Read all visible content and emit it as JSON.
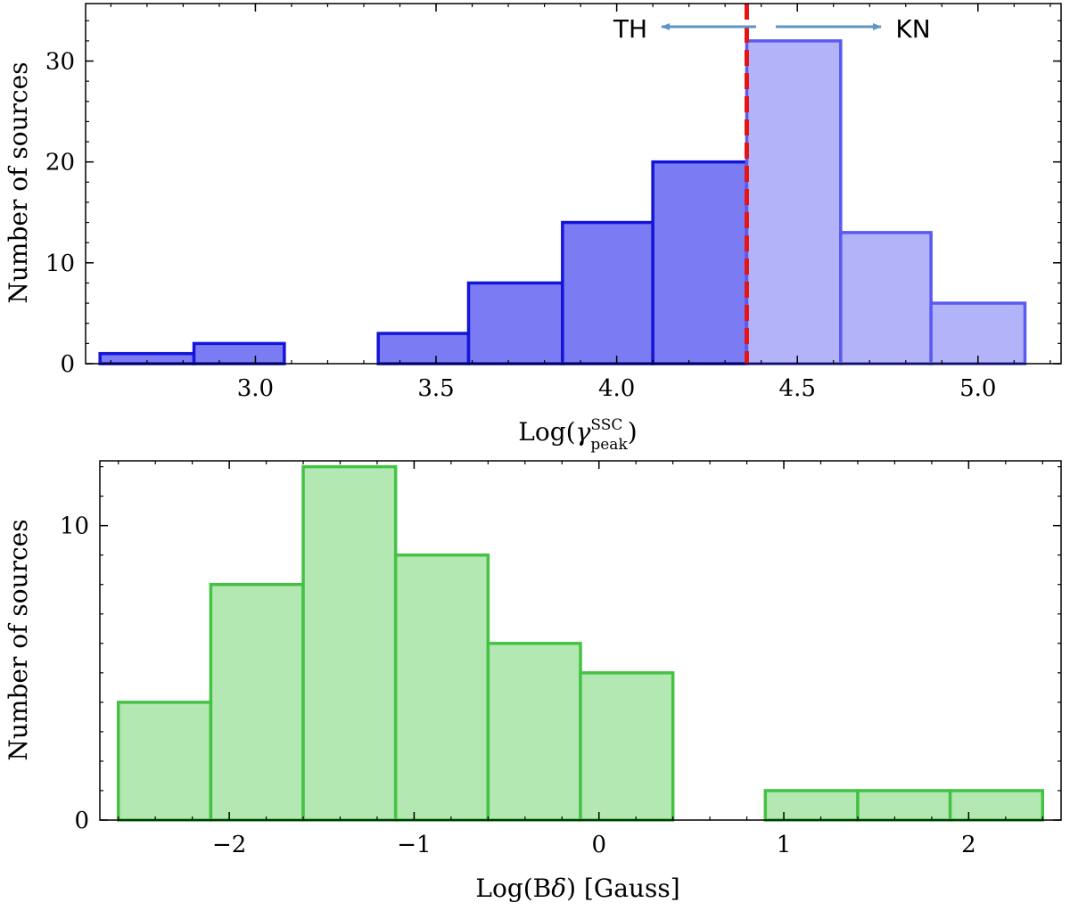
{
  "colors": {
    "top_bar_fill_th": "#7b7bf4",
    "top_bar_fill_kn": "#b3b3fa",
    "top_bar_edge_th": "#1515d8",
    "top_bar_edge_kn": "#5a5af0",
    "bottom_bar_fill": "#b3e8b3",
    "bottom_bar_edge": "#44c244",
    "threshold_line": "#e81414",
    "arrow": "#5f94c6"
  },
  "chart_data": [
    {
      "type": "bar",
      "subtype": "histogram",
      "xlabel": "Log(",
      "xlabel_symbol": "γ",
      "xlabel_sup": "SSC",
      "xlabel_sub": "peak",
      "xlabel_close": ")",
      "ylabel": "Number of sources",
      "xlim": [
        2.53,
        5.23
      ],
      "ylim": [
        0,
        35.7
      ],
      "xticks": [
        3.0,
        3.5,
        4.0,
        4.5,
        5.0
      ],
      "xtick_labels": [
        "3.0",
        "3.5",
        "4.0",
        "4.5",
        "5.0"
      ],
      "yticks": [
        0,
        10,
        20,
        30
      ],
      "ytick_labels": [
        "0",
        "10",
        "20",
        "30"
      ],
      "bins": [
        {
          "x0": 2.57,
          "x1": 2.83,
          "count": 1,
          "group": "TH"
        },
        {
          "x0": 2.83,
          "x1": 3.08,
          "count": 2,
          "group": "TH"
        },
        {
          "x0": 3.08,
          "x1": 3.34,
          "count": 0,
          "group": "TH"
        },
        {
          "x0": 3.34,
          "x1": 3.59,
          "count": 3,
          "group": "TH"
        },
        {
          "x0": 3.59,
          "x1": 3.85,
          "count": 8,
          "group": "TH"
        },
        {
          "x0": 3.85,
          "x1": 4.1,
          "count": 14,
          "group": "TH"
        },
        {
          "x0": 4.1,
          "x1": 4.36,
          "count": 20,
          "group": "TH"
        },
        {
          "x0": 4.36,
          "x1": 4.62,
          "count": 32,
          "group": "KN"
        },
        {
          "x0": 4.62,
          "x1": 4.87,
          "count": 13,
          "group": "KN"
        },
        {
          "x0": 4.87,
          "x1": 5.13,
          "count": 6,
          "group": "KN"
        }
      ],
      "threshold_x": 4.36,
      "annotations": [
        {
          "text": "TH",
          "direction": "left"
        },
        {
          "text": "KN",
          "direction": "right"
        }
      ]
    },
    {
      "type": "bar",
      "subtype": "histogram",
      "xlabel": "Log(B",
      "xlabel_symbol": "δ",
      "xlabel_close": ") [Gauss]",
      "ylabel": "Number of sources",
      "xlim": [
        -2.7,
        2.5
      ],
      "ylim": [
        0,
        12.2
      ],
      "xticks": [
        -2,
        -1,
        0,
        1,
        2
      ],
      "xtick_labels": [
        "−2",
        "−1",
        "0",
        "1",
        "2"
      ],
      "yticks": [
        0,
        10
      ],
      "ytick_labels": [
        "0",
        "10"
      ],
      "bins": [
        {
          "x0": -2.6,
          "x1": -2.1,
          "count": 4
        },
        {
          "x0": -2.1,
          "x1": -1.6,
          "count": 8
        },
        {
          "x0": -1.6,
          "x1": -1.1,
          "count": 12
        },
        {
          "x0": -1.1,
          "x1": -0.6,
          "count": 9
        },
        {
          "x0": -0.6,
          "x1": -0.1,
          "count": 6
        },
        {
          "x0": -0.1,
          "x1": 0.4,
          "count": 5
        },
        {
          "x0": 0.4,
          "x1": 0.9,
          "count": 0
        },
        {
          "x0": 0.9,
          "x1": 1.4,
          "count": 1
        },
        {
          "x0": 1.4,
          "x1": 1.9,
          "count": 1
        },
        {
          "x0": 1.9,
          "x1": 2.4,
          "count": 1
        }
      ]
    }
  ]
}
